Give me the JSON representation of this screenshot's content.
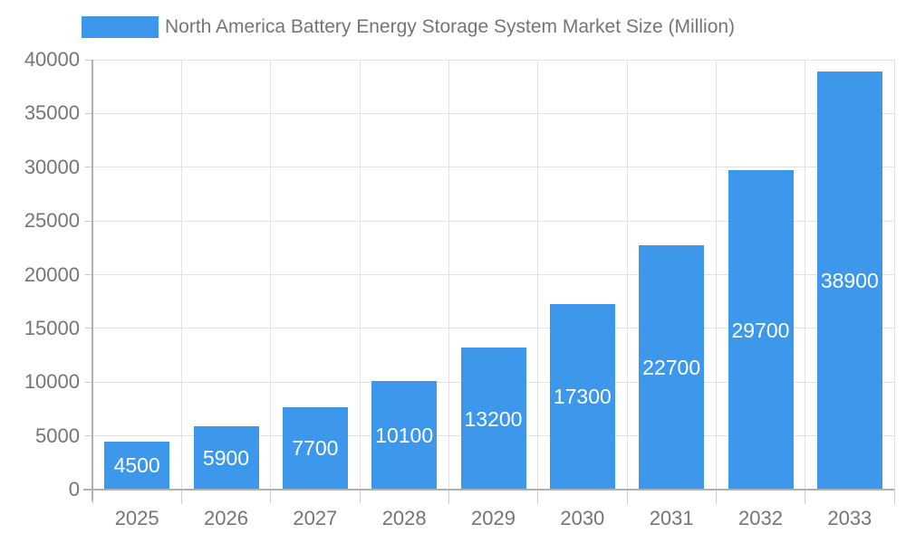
{
  "legend": {
    "series_label": "North America Battery Energy Storage System Market Size (Million)"
  },
  "chart_data": {
    "type": "bar",
    "title": "North America Battery Energy Storage System Market Size (Million)",
    "categories": [
      "2025",
      "2026",
      "2027",
      "2028",
      "2029",
      "2030",
      "2031",
      "2032",
      "2033"
    ],
    "values": [
      4500,
      5900,
      7700,
      10100,
      13200,
      17300,
      22700,
      29700,
      38900
    ],
    "bar_labels": [
      "4500",
      "5900",
      "7700",
      "10100",
      "13200",
      "17300",
      "22700",
      "29700",
      "38900"
    ],
    "xlabel": "",
    "ylabel": "",
    "ylim": [
      0,
      40000
    ],
    "ytick_step": 5000,
    "ytick_labels": [
      "0",
      "5000",
      "10000",
      "15000",
      "20000",
      "25000",
      "30000",
      "35000",
      "40000"
    ],
    "grid": true,
    "grid_style": "full-horizontal-and-vertical",
    "legend_position": "top-left",
    "bar_labels_position": "centered-inside-bar"
  },
  "colors": {
    "bar": "#3d97ea",
    "title_text": "#757575",
    "axis_text": "#757575",
    "grid_line": "#e2e2e2",
    "axis_line": "#b0b0b0",
    "tick": "#cccccc",
    "bar_label": "#ffffff",
    "background": "#ffffff"
  }
}
